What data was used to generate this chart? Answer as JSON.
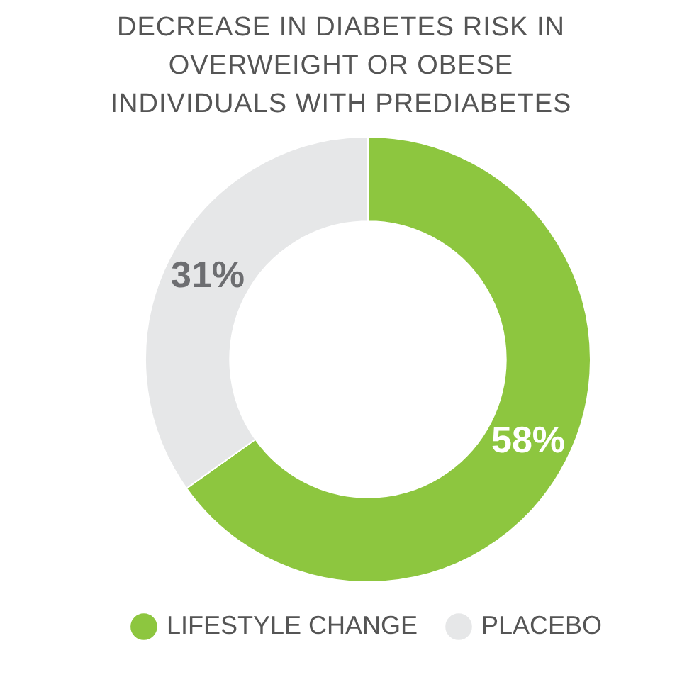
{
  "chart_data": {
    "type": "donut",
    "title": "DECREASE IN DIABETES RISK IN OVERWEIGHT OR OBESE INDIVIDUALS WITH PREDIABETES",
    "categories": [
      "LIFESTYLE CHANGE",
      "PLACEBO"
    ],
    "values": [
      58,
      31
    ],
    "colors": [
      "#8dc63f",
      "#e6e7e8"
    ],
    "value_labels": [
      "58%",
      "31%"
    ],
    "legend": "bottom"
  }
}
